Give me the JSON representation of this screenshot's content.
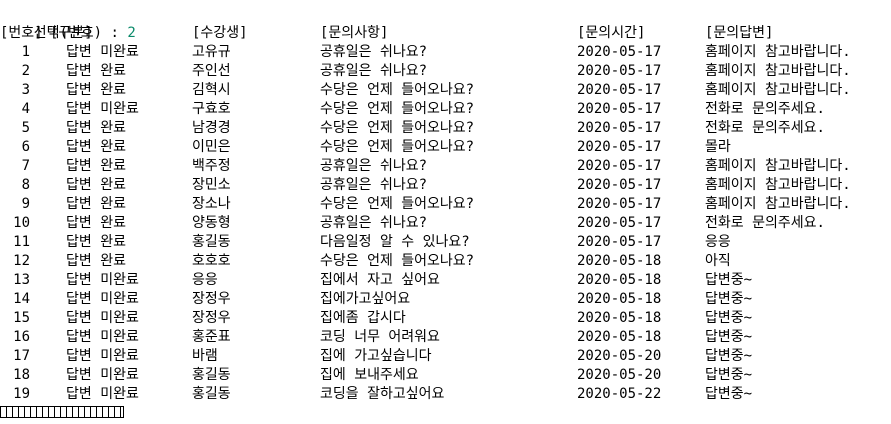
{
  "prompt": {
    "label": "선택(번호) : ",
    "value": "2"
  },
  "headers": [
    "[번호]",
    "[구분]",
    "[수강생]",
    "[문의사항]",
    "[문의시간]",
    "[문의답변]"
  ],
  "rows": [
    [
      "1",
      "답변 미완료",
      "고유규",
      "공휴일은 쉬나요?",
      "2020-05-17",
      "홈페이지 참고바랍니다."
    ],
    [
      "2",
      "답변 완료",
      "주인선",
      "공휴일은 쉬나요?",
      "2020-05-17",
      "홈페이지 참고바랍니다."
    ],
    [
      "3",
      "답변 완료",
      "김혁시",
      "수당은 언제 들어오나요?",
      "2020-05-17",
      "홈페이지 참고바랍니다."
    ],
    [
      "4",
      "답변 미완료",
      "구효호",
      "수당은 언제 들어오나요?",
      "2020-05-17",
      "전화로 문의주세요."
    ],
    [
      "5",
      "답변 완료",
      "남경경",
      "수당은 언제 들어오나요?",
      "2020-05-17",
      "전화로 문의주세요."
    ],
    [
      "6",
      "답변 완료",
      "이민은",
      "수당은 언제 들어오나요?",
      "2020-05-17",
      "몰라"
    ],
    [
      "7",
      "답변 완료",
      "백주정",
      "공휴일은 쉬나요?",
      "2020-05-17",
      "홈페이지 참고바랍니다."
    ],
    [
      "8",
      "답변 완료",
      "장민소",
      "공휴일은 쉬나요?",
      "2020-05-17",
      "홈페이지 참고바랍니다."
    ],
    [
      "9",
      "답변 완료",
      "장소나",
      "수당은 언제 들어오나요?",
      "2020-05-17",
      "홈페이지 참고바랍니다."
    ],
    [
      "10",
      "답변 완료",
      "양동형",
      "공휴일은 쉬나요?",
      "2020-05-17",
      "전화로 문의주세요."
    ],
    [
      "11",
      "답변 완료",
      "홍길동",
      "다음일정 알 수 있나요?",
      "2020-05-17",
      "응응"
    ],
    [
      "12",
      "답변 완료",
      "호호호",
      "수당은 언제 들어오나요?",
      "2020-05-18",
      "아직"
    ],
    [
      "13",
      "답변 미완료",
      "응응",
      "집에서 자고 싶어요",
      "2020-05-18",
      "답변중~"
    ],
    [
      "14",
      "답변 미완료",
      "장정우",
      "집에가고싶어요",
      "2020-05-18",
      "답변중~"
    ],
    [
      "15",
      "답변 미완료",
      "장정우",
      "집에좀 갑시다",
      "2020-05-18",
      "답변중~"
    ],
    [
      "16",
      "답변 미완료",
      "홍준표",
      "코딩 너무 어려워요",
      "2020-05-18",
      "답변중~"
    ],
    [
      "17",
      "답변 미완료",
      "바램",
      "집에 가고싶습니다",
      "2020-05-20",
      "답변중~"
    ],
    [
      "18",
      "답변 미완료",
      "홍길동",
      "집에 보내주세요",
      "2020-05-20",
      "답변중~"
    ],
    [
      "19",
      "답변 미완료",
      "홍길동",
      "코딩을 잘하고싶어요",
      "2020-05-22",
      "답변중~"
    ]
  ]
}
